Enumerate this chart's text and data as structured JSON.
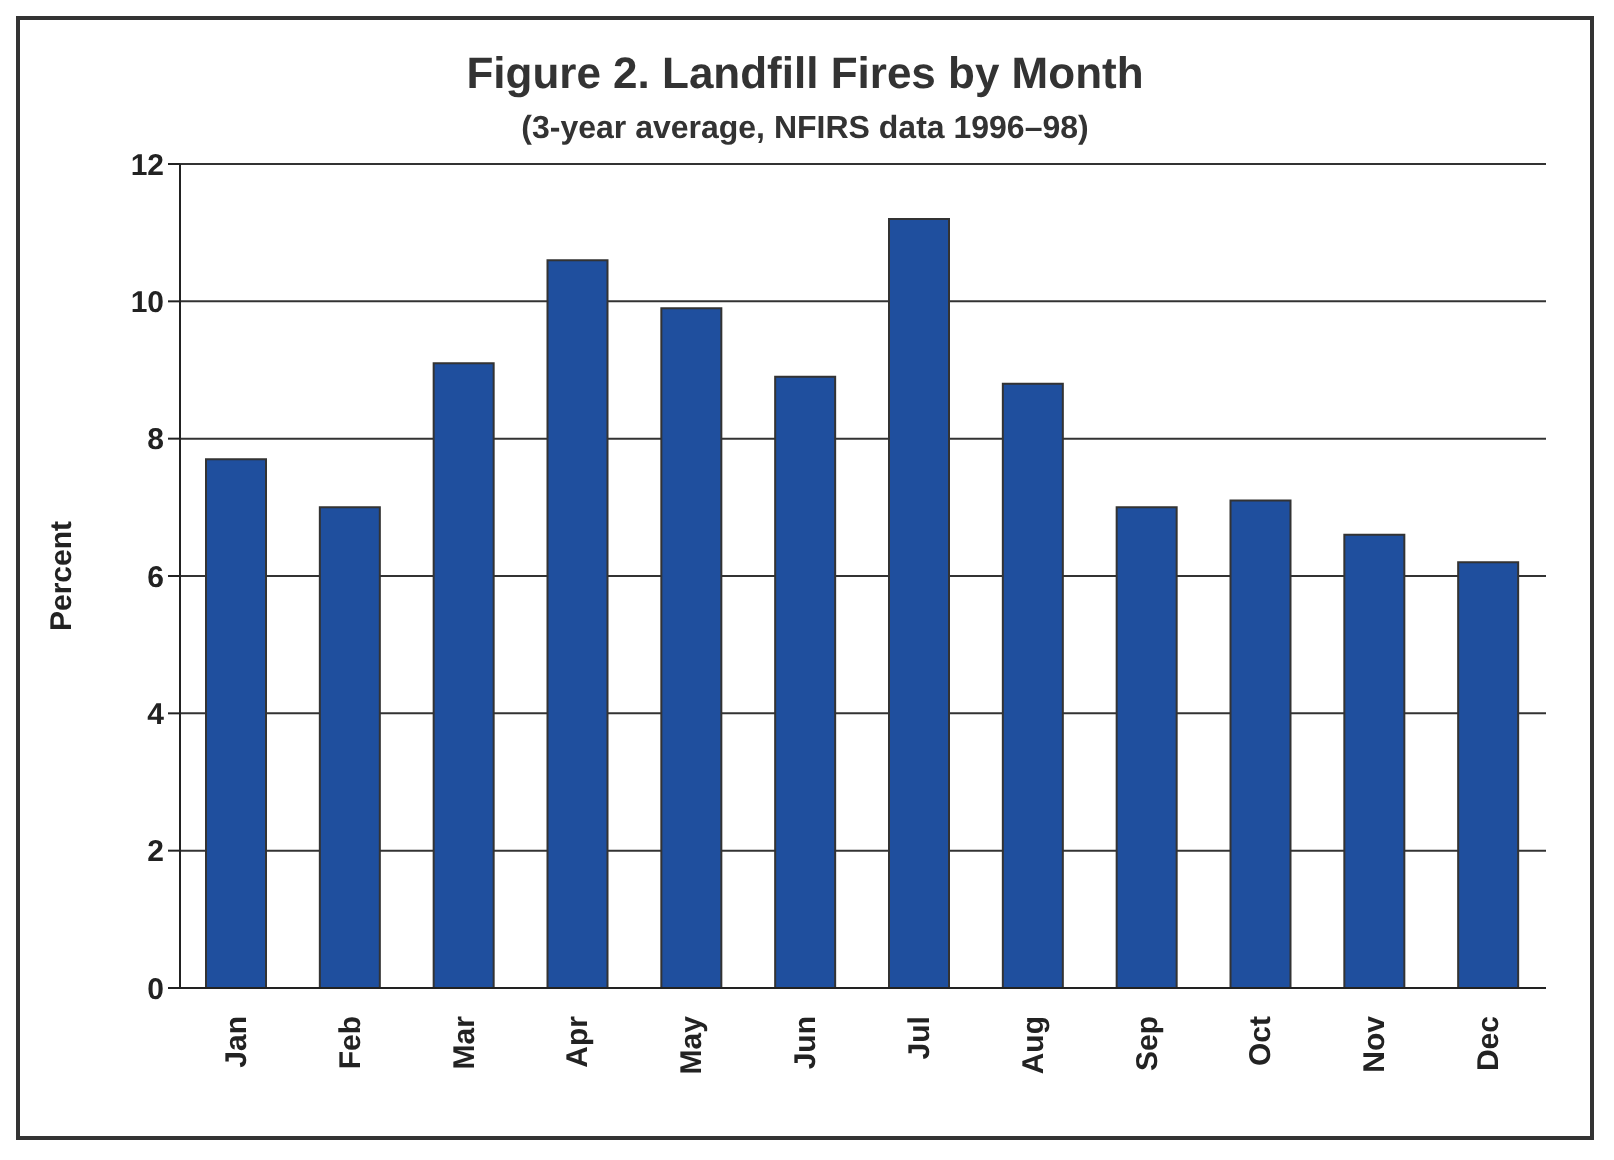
{
  "chart_data": {
    "type": "bar",
    "title": "Figure 2.  Landfill Fires by Month",
    "subtitle": "(3-year average, NFIRS data 1996–98)",
    "ylabel": "Percent",
    "categories": [
      "Jan",
      "Feb",
      "Mar",
      "Apr",
      "May",
      "Jun",
      "Jul",
      "Aug",
      "Sep",
      "Oct",
      "Nov",
      "Dec"
    ],
    "values": [
      7.7,
      7.0,
      9.1,
      10.6,
      9.9,
      8.9,
      11.2,
      8.8,
      7.0,
      7.1,
      6.6,
      6.2
    ],
    "color": "#1f4f9e",
    "ylim": [
      0,
      12
    ],
    "yticks": [
      0,
      2,
      4,
      6,
      8,
      10,
      12
    ],
    "grid": "y"
  }
}
